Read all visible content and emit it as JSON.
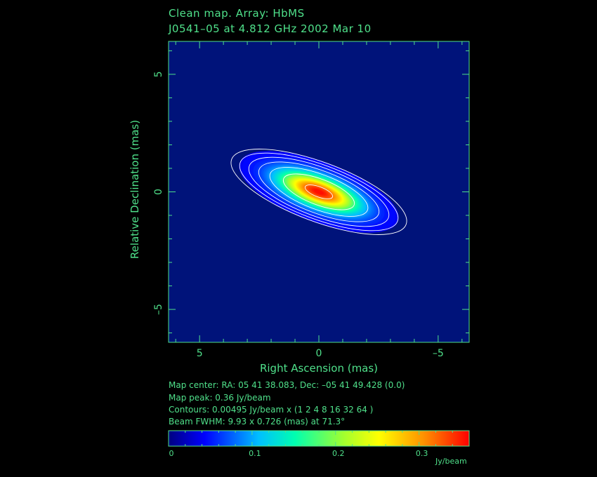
{
  "header": {
    "title_line1": "Clean map.  Array: HbMS",
    "title_line2": "J0541–05 at 4.812 GHz 2002 Mar 10"
  },
  "info": {
    "map_center": "Map center:  RA: 05 41 38.083,  Dec: –05 41 49.428 (0.0)",
    "map_peak": "Map peak: 0.36 Jy/beam",
    "contours": "Contours: 0.00495 Jy/beam x (1 2 4 8 16 32 64 )",
    "beam": "Beam FWHM: 9.93 x 0.726 (mas) at 71.3°"
  },
  "colors": {
    "axis": "#4fe08a",
    "background": "#000000",
    "colormap": [
      "#000080",
      "#0000ff",
      "#00bfff",
      "#00ffb0",
      "#a0ff30",
      "#ffff00",
      "#ff9000",
      "#ff0000"
    ]
  },
  "chart_data": {
    "type": "heatmap",
    "title": "Clean map.  Array: HbMS",
    "subtitle": "J0541–05 at 4.812 GHz 2002 Mar 10",
    "xlabel": "Right Ascension   (mas)",
    "ylabel": "Relative Declination   (mas)",
    "xlim": [
      6.3,
      -6.3
    ],
    "ylim": [
      -6.4,
      6.4
    ],
    "xticks": [
      5,
      0,
      -5
    ],
    "xtick_labels": [
      "5",
      "0",
      "–5"
    ],
    "yticks": [
      5,
      0,
      -5
    ],
    "ytick_labels": [
      "5",
      "0",
      "–5"
    ],
    "grid": false,
    "source": {
      "peak": 0.36,
      "center_x": 0,
      "center_y": 0,
      "major_fwhm": 9.93,
      "minor_fwhm": 0.726,
      "position_angle_deg": 71.3
    },
    "contour_base": 0.00495,
    "contour_multipliers": [
      1,
      2,
      4,
      8,
      16,
      32,
      64
    ],
    "colorbar": {
      "range": [
        0,
        0.36
      ],
      "ticks": [
        0,
        0.1,
        0.2,
        0.3
      ],
      "tick_labels": [
        "0",
        "0.1",
        "0.2",
        "0.3"
      ],
      "unit": "Jy/beam"
    }
  }
}
